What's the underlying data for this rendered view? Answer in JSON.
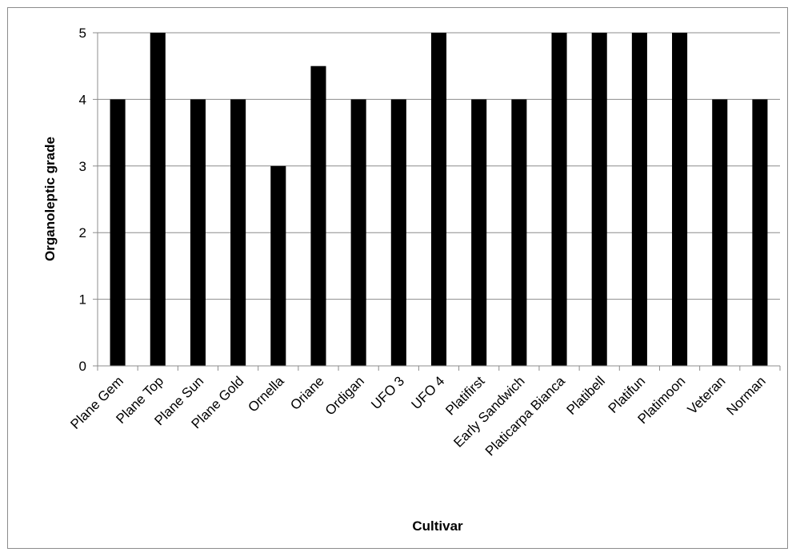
{
  "chart_data": {
    "type": "bar",
    "title": "",
    "xlabel": "Cultivar",
    "ylabel": "Organoleptic grade",
    "categories": [
      "Plane Gem",
      "Plane Top",
      "Plane Sun",
      "Plane Gold",
      "Ornella",
      "Oriane",
      "Ordigan",
      "UFO 3",
      "UFO 4",
      "Platifirst",
      "Early Sandwich",
      "Platicarpa Bianca",
      "Platibell",
      "Platifun",
      "Platimoon",
      "Veteran",
      "Norman"
    ],
    "values": [
      4,
      5,
      4,
      4,
      3,
      4.5,
      4,
      4,
      5,
      4,
      4,
      5,
      5,
      5,
      5,
      4,
      4
    ],
    "ylim": [
      0,
      5
    ],
    "yticks": [
      "0",
      "1",
      "2",
      "3",
      "4",
      "5"
    ],
    "grid": true,
    "legend": "none",
    "bar_color": "#000000",
    "grid_color": "#8c8c8c"
  }
}
